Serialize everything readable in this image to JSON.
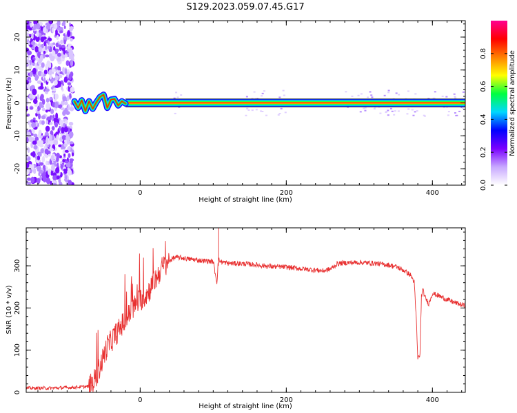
{
  "title": "S129.2023.059.07.45.G17",
  "chart_data": [
    {
      "type": "heatmap",
      "xlabel": "Height of straight line (km)",
      "ylabel": "Frequency (Hz)",
      "xlim": [
        -156,
        445
      ],
      "ylim": [
        -25,
        25
      ],
      "x_ticks": [
        0,
        200,
        400
      ],
      "y_ticks": [
        -20,
        -10,
        0,
        10,
        20
      ],
      "x_minor_step": 20,
      "y_minor_step": 2,
      "colorbar": {
        "label": "Normalized spectral amplitude",
        "range": [
          0,
          1
        ],
        "ticks": [
          "0.0",
          "0.2",
          "0.4",
          "0.6",
          "0.8"
        ],
        "tick_values": [
          0,
          0.2,
          0.4,
          0.6,
          0.8
        ],
        "colors": [
          "#ffffff",
          "#c8a8ff",
          "#7a00ff",
          "#0000ff",
          "#00d8ff",
          "#00ff40",
          "#ffff00",
          "#ff8000",
          "#ff0000",
          "#ff0090"
        ]
      },
      "noise_region_x": [
        -156,
        -92
      ],
      "signal_trace": {
        "x": [
          -90,
          -85,
          -80,
          -75,
          -70,
          -65,
          -60,
          -55,
          -50,
          -45,
          -40,
          -35,
          -30,
          -25,
          -20
        ],
        "freq": [
          0.5,
          -1.5,
          0.8,
          -2.5,
          0.5,
          -1.8,
          0.2,
          1.8,
          2.5,
          -1.5,
          1.0,
          1.2,
          -0.8,
          0.5,
          -0.2
        ]
      },
      "carrier_line": {
        "freq": 0,
        "x_start": -20,
        "x_end": 445
      },
      "carrier_band": {
        "half_width_hz": 1.2
      },
      "sparse_noise_segments": [
        {
          "x": [
            45,
            55
          ]
        },
        {
          "x": [
            140,
            200
          ]
        },
        {
          "x": [
            280,
            445
          ]
        },
        {
          "x": [
            335,
            350
          ]
        }
      ]
    },
    {
      "type": "line",
      "xlabel": "Height of straight line (km)",
      "ylabel": "SNR (10 * v/v)",
      "xlim": [
        -156,
        445
      ],
      "ylim": [
        0,
        390
      ],
      "x_ticks": [
        0,
        200,
        400
      ],
      "y_ticks": [
        0,
        100,
        200,
        300
      ],
      "x_minor_step": 20,
      "y_minor_step": 20,
      "line_color": "#e83030",
      "series": [
        {
          "x": [
            -156,
            -120,
            -90,
            -70,
            -65,
            -60,
            -55,
            -50,
            -45,
            -40,
            -35,
            -30,
            -25,
            -20,
            -15,
            -10,
            -5,
            0,
            5,
            10,
            15,
            20,
            25,
            30,
            35,
            40,
            45,
            50,
            60,
            80,
            100,
            105,
            107,
            110,
            115,
            120,
            140,
            160,
            180,
            200,
            220,
            240,
            250,
            260,
            265,
            270,
            280,
            300,
            320,
            340,
            350,
            360,
            370,
            375,
            378,
            380,
            383,
            385,
            387,
            390,
            395,
            400,
            410,
            420,
            430,
            445
          ],
          "y": [
            10,
            10,
            12,
            14,
            20,
            40,
            60,
            85,
            110,
            120,
            135,
            145,
            160,
            170,
            185,
            200,
            210,
            220,
            225,
            235,
            250,
            265,
            280,
            295,
            305,
            312,
            318,
            320,
            318,
            313,
            310,
            260,
            315,
            310,
            308,
            306,
            305,
            302,
            298,
            297,
            293,
            290,
            288,
            292,
            298,
            305,
            307,
            308,
            306,
            302,
            298,
            290,
            278,
            262,
            170,
            80,
            90,
            230,
            242,
            225,
            210,
            235,
            228,
            220,
            213,
            205
          ]
        }
      ]
    }
  ]
}
